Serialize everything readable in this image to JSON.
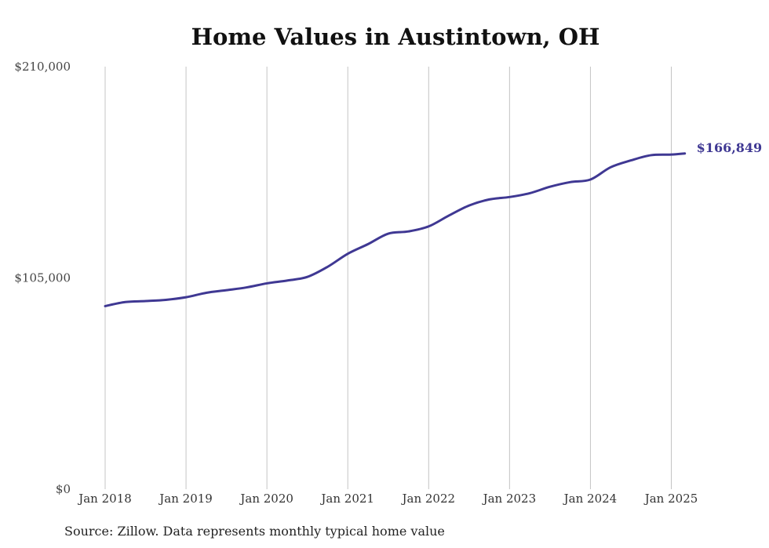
{
  "chart_data": {
    "type": "line",
    "title": "Home Values in Austintown, OH",
    "xlabel": "",
    "ylabel": "",
    "ylim": [
      0,
      210000
    ],
    "xlim": [
      "2018-01",
      "2025-03"
    ],
    "y_ticks": [
      "$0",
      "$105,000",
      "$210,000"
    ],
    "x_ticks": [
      "Jan 2018",
      "Jan 2019",
      "Jan 2020",
      "Jan 2021",
      "Jan 2022",
      "Jan 2023",
      "Jan 2024",
      "Jan 2025"
    ],
    "grid": {
      "vertical": true,
      "horizontal": false
    },
    "colors": {
      "line": "#3f3893",
      "grid": "#c4c4c4"
    },
    "series": [
      {
        "x": [
          "2018-01",
          "2018-04",
          "2018-07",
          "2018-10",
          "2019-01",
          "2019-04",
          "2019-07",
          "2019-10",
          "2020-01",
          "2020-04",
          "2020-07",
          "2020-10",
          "2021-01",
          "2021-04",
          "2021-07",
          "2021-10",
          "2022-01",
          "2022-04",
          "2022-07",
          "2022-10",
          "2023-01",
          "2023-04",
          "2023-07",
          "2023-10",
          "2024-01",
          "2024-04",
          "2024-07",
          "2024-10",
          "2025-01",
          "2025-03"
        ],
        "y": [
          91000,
          93000,
          93500,
          94100,
          95400,
          97600,
          98900,
          100300,
          102300,
          103700,
          105500,
          110500,
          117000,
          121800,
          127000,
          128100,
          130600,
          136000,
          141000,
          144000,
          145200,
          147100,
          150300,
          152600,
          153900,
          160000,
          163400,
          166000,
          166300,
          166849
        ],
        "end_label": "$166,849"
      }
    ],
    "note": "Source: Zillow. Data represents monthly typical home value"
  }
}
